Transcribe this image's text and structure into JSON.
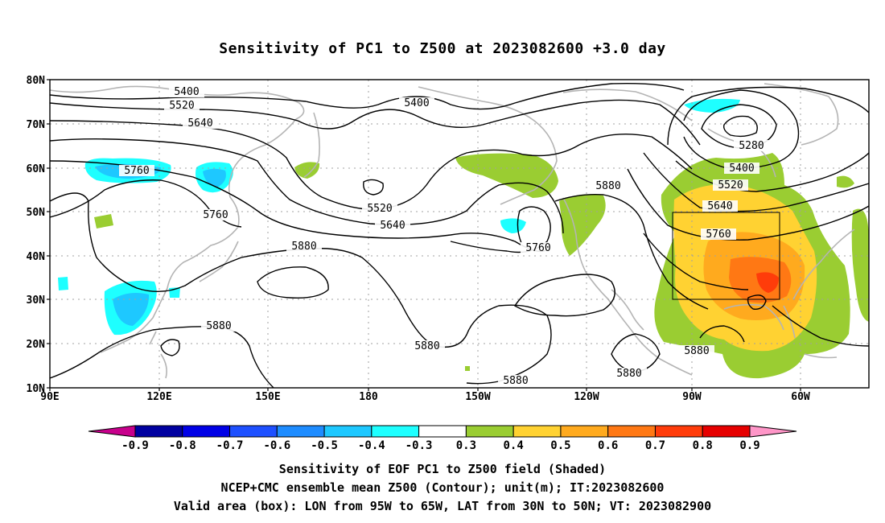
{
  "title": "Sensitivity of PC1 to Z500 at 2023082600 +3.0 day",
  "colors": {
    "land": "#b4b4b4",
    "grid": "#a0a0a0",
    "contour": "#000000",
    "box": "#000000"
  },
  "axes": {
    "lat_labels": [
      "80N",
      "70N",
      "60N",
      "50N",
      "40N",
      "30N",
      "20N",
      "10N"
    ],
    "lon_labels": [
      "90E",
      "120E",
      "150E",
      "180",
      "150W",
      "120W",
      "90W",
      "60W"
    ]
  },
  "colorbar": {
    "ticks": [
      "-0.9",
      "-0.8",
      "-0.7",
      "-0.6",
      "-0.5",
      "-0.4",
      "-0.3",
      "0.3",
      "0.4",
      "0.5",
      "0.6",
      "0.7",
      "0.8",
      "0.9"
    ],
    "colors": [
      "#0000a0",
      "#0000e6",
      "#1e50ff",
      "#1e8cff",
      "#1ec8ff",
      "#1effff",
      "#ffffff",
      "#9acd32",
      "#ffd232",
      "#ffaa1e",
      "#ff7814",
      "#ff3c0a",
      "#e60000"
    ],
    "under_color": "#c8008c",
    "over_color": "#ff96c8"
  },
  "contour_labels": [
    {
      "text": "5400"
    },
    {
      "text": "5400"
    },
    {
      "text": "5520"
    },
    {
      "text": "5640"
    },
    {
      "text": "5760"
    },
    {
      "text": "5760"
    },
    {
      "text": "5880"
    },
    {
      "text": "5880"
    },
    {
      "text": "5520"
    },
    {
      "text": "5640"
    },
    {
      "text": "5760"
    },
    {
      "text": "5880"
    },
    {
      "text": "5880"
    },
    {
      "text": "5880"
    },
    {
      "text": "5880"
    },
    {
      "text": "5280"
    },
    {
      "text": "5400"
    },
    {
      "text": "5520"
    },
    {
      "text": "5640"
    },
    {
      "text": "5760"
    },
    {
      "text": "5880"
    }
  ],
  "captions": {
    "line1": "Sensitivity of EOF PC1 to Z500 field (Shaded)",
    "line2": "NCEP+CMC ensemble mean Z500 (Contour); unit(m); IT:2023082600",
    "line3": "Valid area (box): LON from 95W to 65W, LAT from 30N to 50N; VT: 2023082900"
  }
}
